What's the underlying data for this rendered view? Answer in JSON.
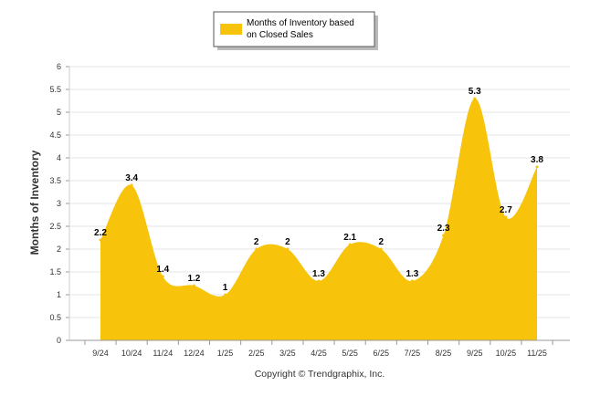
{
  "chart_data": {
    "type": "area",
    "categories": [
      "9/24",
      "10/24",
      "11/24",
      "12/24",
      "1/25",
      "2/25",
      "3/25",
      "4/25",
      "5/25",
      "6/25",
      "7/25",
      "8/25",
      "9/25",
      "10/25",
      "11/25"
    ],
    "series": [
      {
        "name": "Months of Inventory based on Closed Sales",
        "values": [
          2.2,
          3.4,
          1.4,
          1.2,
          1,
          2,
          2,
          1.3,
          2.1,
          2,
          1.3,
          2.3,
          5.3,
          2.7,
          3.8
        ],
        "color": "#F7C30B"
      }
    ],
    "data_labels": [
      "2.2",
      "3.4",
      "1.4",
      "1.2",
      "1",
      "2",
      "2",
      "1.3",
      "2.1",
      "2",
      "1.3",
      "2.3",
      "5.3",
      "2.7",
      "3.8"
    ],
    "legend": {
      "position": "top",
      "line1": "Months of Inventory based",
      "line2": "on Closed Sales"
    },
    "ylabel": "Months of Inventory",
    "xlabel": "",
    "ylim": [
      0,
      6
    ],
    "y_ticks": [
      "0",
      "0.5",
      "1",
      "1.5",
      "2",
      "2.5",
      "3",
      "3.5",
      "4",
      "4.5",
      "5",
      "5.5",
      "6"
    ],
    "grid": true,
    "footer": "Copyright © Trendgraphix, Inc."
  }
}
